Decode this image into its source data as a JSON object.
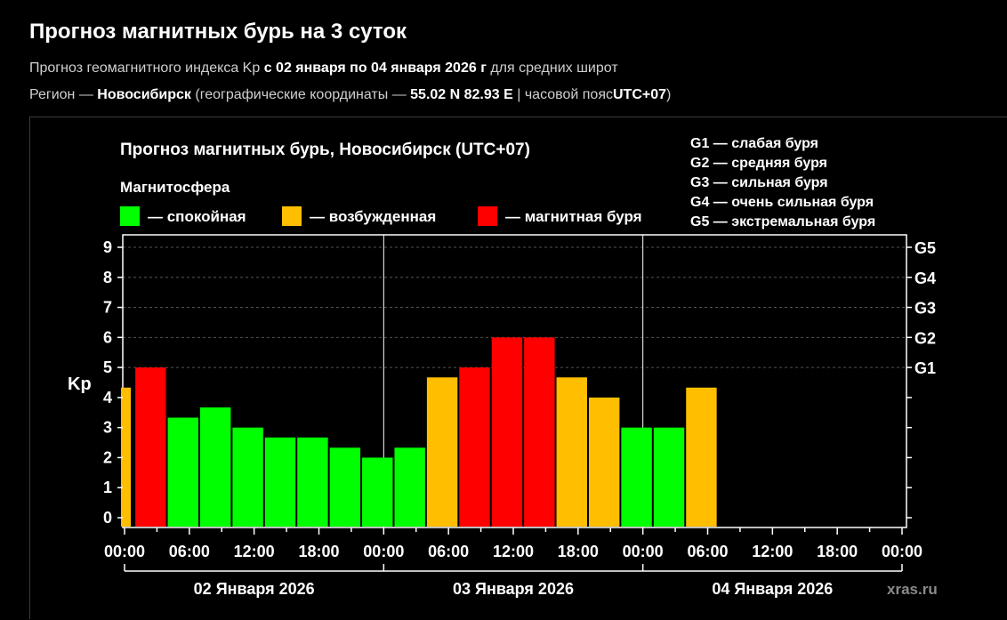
{
  "header": {
    "title": "Прогноз магнитных бурь на 3 суток",
    "line1_pre": "Прогноз геомагнитного индекса Kp",
    "line1_bold": "с 02 января по 04 января 2026 г",
    "line1_post": "для средних широт",
    "line2_pre": "Регион —",
    "line2_region": "Новосибирск",
    "line2_coords_pre": "(географические координаты —",
    "line2_coords": "55.02 N 82.93 E",
    "line2_tz_pre": "| часовой пояс",
    "line2_tz": "UTC+07",
    "line2_end": ")"
  },
  "chart_data": {
    "type": "bar",
    "title": "Прогноз магнитных бурь, Новосибирск (UTC+07)",
    "legend_title": "Магнитосфера",
    "legend": [
      {
        "key": "calm",
        "label": "— спокойная",
        "color": "#00ff00"
      },
      {
        "key": "excited",
        "label": "— возбужденная",
        "color": "#ffbf00"
      },
      {
        "key": "storm",
        "label": "— магнитная буря",
        "color": "#ff0000"
      }
    ],
    "g_legend": [
      "G1 — слабая буря",
      "G2 — средняя буря",
      "G3 — сильная буря",
      "G4 — очень сильная буря",
      "G5 — экстремальная буря"
    ],
    "ylabel": "Kp",
    "ylim": [
      0,
      9
    ],
    "y_ticks": [
      0,
      1,
      2,
      3,
      4,
      5,
      6,
      7,
      8,
      9
    ],
    "g_ticks": [
      {
        "label": "G1",
        "kp": 5
      },
      {
        "label": "G2",
        "kp": 6
      },
      {
        "label": "G3",
        "kp": 7
      },
      {
        "label": "G4",
        "kp": 8
      },
      {
        "label": "G5",
        "kp": 9
      }
    ],
    "grid": true,
    "x_range_hours": [
      0,
      72
    ],
    "x_tick_labels": [
      "00:00",
      "06:00",
      "12:00",
      "18:00",
      "00:00",
      "06:00",
      "12:00",
      "18:00",
      "00:00",
      "06:00",
      "12:00",
      "18:00",
      "00:00"
    ],
    "day_labels": [
      "02 Января 2026",
      "03 Января 2026",
      "04 Января 2026"
    ],
    "bars": [
      {
        "start_hour": 0,
        "kp": 4.33,
        "level": "excited",
        "partial": true
      },
      {
        "start_hour": 1,
        "kp": 5,
        "level": "storm"
      },
      {
        "start_hour": 4,
        "kp": 3.33,
        "level": "calm"
      },
      {
        "start_hour": 7,
        "kp": 3.67,
        "level": "calm"
      },
      {
        "start_hour": 10,
        "kp": 3,
        "level": "calm"
      },
      {
        "start_hour": 13,
        "kp": 2.67,
        "level": "calm"
      },
      {
        "start_hour": 16,
        "kp": 2.67,
        "level": "calm"
      },
      {
        "start_hour": 19,
        "kp": 2.33,
        "level": "calm"
      },
      {
        "start_hour": 22,
        "kp": 2,
        "level": "calm"
      },
      {
        "start_hour": 25,
        "kp": 2.33,
        "level": "calm"
      },
      {
        "start_hour": 28,
        "kp": 4.67,
        "level": "excited"
      },
      {
        "start_hour": 31,
        "kp": 5,
        "level": "storm"
      },
      {
        "start_hour": 34,
        "kp": 6,
        "level": "storm"
      },
      {
        "start_hour": 37,
        "kp": 6,
        "level": "storm"
      },
      {
        "start_hour": 40,
        "kp": 4.67,
        "level": "excited"
      },
      {
        "start_hour": 43,
        "kp": 4,
        "level": "excited"
      },
      {
        "start_hour": 46,
        "kp": 3,
        "level": "calm"
      },
      {
        "start_hour": 49,
        "kp": 3,
        "level": "calm"
      },
      {
        "start_hour": 52,
        "kp": 4.33,
        "level": "excited"
      }
    ],
    "watermark": "xras.ru"
  }
}
